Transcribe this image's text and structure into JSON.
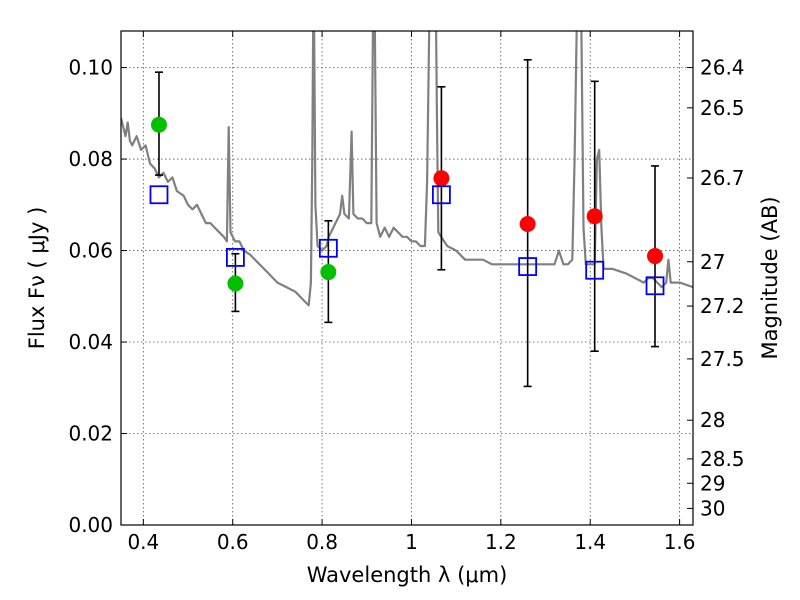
{
  "chart_data": {
    "type": "scatter",
    "xlabel": "Wavelength  λ (μm)",
    "ylabel": "Flux  Fν  ( μJy )",
    "y2label": "Magnitude (AB)",
    "xlim": [
      0.35,
      1.63
    ],
    "ylim": [
      0.0,
      0.108
    ],
    "grid": true,
    "x_ticks": [
      0.4,
      0.6,
      0.8,
      1.0,
      1.2,
      1.4,
      1.6
    ],
    "x_tick_labels": [
      "0.4",
      "0.6",
      "0.8",
      "1",
      "1.2",
      "1.4",
      "1.6"
    ],
    "y_ticks": [
      0.0,
      0.02,
      0.04,
      0.06,
      0.08,
      0.1
    ],
    "y_tick_labels": [
      "0.00",
      "0.02",
      "0.04",
      "0.06",
      "0.08",
      "0.10"
    ],
    "magnitude_ticks": [
      26.4,
      26.5,
      26.7,
      27,
      27.2,
      27.5,
      28,
      28.5,
      29,
      30
    ],
    "magnitude_tick_labels": [
      "26.4",
      "26.5",
      "26.7",
      "27",
      "27.2",
      "27.5",
      "28",
      "28.5",
      "29",
      "30"
    ],
    "series": [
      {
        "name": "model spectrum",
        "kind": "line",
        "color": "#808080",
        "points": [
          [
            0.35,
            0.089
          ],
          [
            0.36,
            0.085
          ],
          [
            0.365,
            0.088
          ],
          [
            0.37,
            0.084
          ],
          [
            0.375,
            0.083
          ],
          [
            0.385,
            0.085
          ],
          [
            0.395,
            0.082
          ],
          [
            0.405,
            0.083
          ],
          [
            0.415,
            0.079
          ],
          [
            0.425,
            0.078
          ],
          [
            0.435,
            0.076
          ],
          [
            0.445,
            0.077
          ],
          [
            0.455,
            0.075
          ],
          [
            0.465,
            0.076
          ],
          [
            0.475,
            0.073
          ],
          [
            0.49,
            0.072
          ],
          [
            0.5,
            0.07
          ],
          [
            0.51,
            0.069
          ],
          [
            0.52,
            0.07
          ],
          [
            0.53,
            0.068
          ],
          [
            0.54,
            0.066
          ],
          [
            0.55,
            0.066
          ],
          [
            0.56,
            0.065
          ],
          [
            0.57,
            0.064
          ],
          [
            0.58,
            0.063
          ],
          [
            0.587,
            0.062
          ],
          [
            0.591,
            0.087
          ],
          [
            0.595,
            0.064
          ],
          [
            0.605,
            0.062
          ],
          [
            0.615,
            0.062
          ],
          [
            0.625,
            0.06
          ],
          [
            0.64,
            0.059
          ],
          [
            0.66,
            0.057
          ],
          [
            0.68,
            0.055
          ],
          [
            0.7,
            0.053
          ],
          [
            0.72,
            0.052
          ],
          [
            0.74,
            0.051
          ],
          [
            0.76,
            0.049
          ],
          [
            0.77,
            0.048
          ],
          [
            0.775,
            0.053
          ],
          [
            0.778,
            0.08
          ],
          [
            0.78,
            0.11
          ],
          [
            0.782,
            0.11
          ],
          [
            0.785,
            0.07
          ],
          [
            0.79,
            0.061
          ],
          [
            0.8,
            0.06
          ],
          [
            0.81,
            0.061
          ],
          [
            0.815,
            0.063
          ],
          [
            0.82,
            0.064
          ],
          [
            0.83,
            0.066
          ],
          [
            0.84,
            0.068
          ],
          [
            0.845,
            0.072
          ],
          [
            0.85,
            0.068
          ],
          [
            0.86,
            0.067
          ],
          [
            0.866,
            0.086
          ],
          [
            0.87,
            0.068
          ],
          [
            0.88,
            0.067
          ],
          [
            0.89,
            0.067
          ],
          [
            0.9,
            0.066
          ],
          [
            0.91,
            0.066
          ],
          [
            0.914,
            0.11
          ],
          [
            0.918,
            0.11
          ],
          [
            0.922,
            0.066
          ],
          [
            0.93,
            0.063
          ],
          [
            0.94,
            0.065
          ],
          [
            0.95,
            0.063
          ],
          [
            0.96,
            0.065
          ],
          [
            0.97,
            0.064
          ],
          [
            0.98,
            0.063
          ],
          [
            0.99,
            0.063
          ],
          [
            1.0,
            0.062
          ],
          [
            1.01,
            0.062
          ],
          [
            1.02,
            0.061
          ],
          [
            1.03,
            0.061
          ],
          [
            1.035,
            0.075
          ],
          [
            1.04,
            0.11
          ],
          [
            1.055,
            0.11
          ],
          [
            1.058,
            0.08
          ],
          [
            1.06,
            0.064
          ],
          [
            1.08,
            0.061
          ],
          [
            1.1,
            0.06
          ],
          [
            1.12,
            0.058
          ],
          [
            1.14,
            0.058
          ],
          [
            1.16,
            0.058
          ],
          [
            1.18,
            0.057
          ],
          [
            1.2,
            0.057
          ],
          [
            1.22,
            0.057
          ],
          [
            1.24,
            0.057
          ],
          [
            1.26,
            0.057
          ],
          [
            1.28,
            0.057
          ],
          [
            1.3,
            0.057
          ],
          [
            1.32,
            0.057
          ],
          [
            1.33,
            0.06
          ],
          [
            1.34,
            0.057
          ],
          [
            1.35,
            0.057
          ],
          [
            1.36,
            0.058
          ],
          [
            1.365,
            0.08
          ],
          [
            1.37,
            0.11
          ],
          [
            1.38,
            0.11
          ],
          [
            1.385,
            0.065
          ],
          [
            1.39,
            0.057
          ],
          [
            1.4,
            0.057
          ],
          [
            1.41,
            0.057
          ],
          [
            1.415,
            0.08
          ],
          [
            1.42,
            0.082
          ],
          [
            1.425,
            0.065
          ],
          [
            1.43,
            0.056
          ],
          [
            1.45,
            0.056
          ],
          [
            1.48,
            0.055
          ],
          [
            1.5,
            0.054
          ],
          [
            1.52,
            0.053
          ],
          [
            1.53,
            0.054
          ],
          [
            1.54,
            0.054
          ],
          [
            1.55,
            0.053
          ],
          [
            1.56,
            0.052
          ],
          [
            1.57,
            0.053
          ],
          [
            1.575,
            0.058
          ],
          [
            1.58,
            0.053
          ],
          [
            1.6,
            0.053
          ],
          [
            1.63,
            0.052
          ]
        ]
      },
      {
        "name": "observed flux (green)",
        "kind": "errorbar",
        "color": "#00c000",
        "points": [
          {
            "x": 0.435,
            "y": 0.0875,
            "ylo": 0.0765,
            "yhi": 0.099
          },
          {
            "x": 0.606,
            "y": 0.0528,
            "ylo": 0.0467,
            "yhi": 0.0593
          },
          {
            "x": 0.814,
            "y": 0.0553,
            "ylo": 0.0443,
            "yhi": 0.0665
          }
        ]
      },
      {
        "name": "observed flux (red)",
        "kind": "errorbar",
        "color": "#ff0000",
        "points": [
          {
            "x": 1.067,
            "y": 0.0758,
            "ylo": 0.0558,
            "yhi": 0.0958
          },
          {
            "x": 1.26,
            "y": 0.0658,
            "ylo": 0.0303,
            "yhi": 0.1017
          },
          {
            "x": 1.41,
            "y": 0.0675,
            "ylo": 0.038,
            "yhi": 0.097
          },
          {
            "x": 1.545,
            "y": 0.0588,
            "ylo": 0.039,
            "yhi": 0.0785
          }
        ]
      },
      {
        "name": "model synthetic photometry",
        "kind": "marker",
        "color": "#0000ff",
        "points": [
          {
            "x": 0.435,
            "y": 0.0722
          },
          {
            "x": 0.606,
            "y": 0.0585
          },
          {
            "x": 0.814,
            "y": 0.0605
          },
          {
            "x": 1.067,
            "y": 0.0722
          },
          {
            "x": 1.26,
            "y": 0.0565
          },
          {
            "x": 1.41,
            "y": 0.0557
          },
          {
            "x": 1.545,
            "y": 0.0523
          }
        ]
      }
    ]
  }
}
